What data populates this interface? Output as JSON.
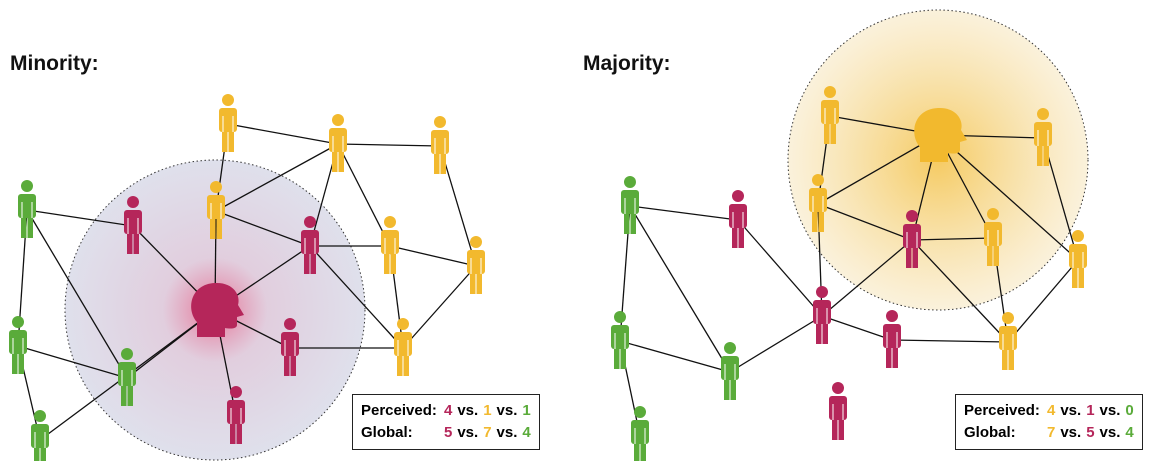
{
  "separator": "vs.",
  "panels": [
    {
      "title": "Minority:",
      "rows": [
        {
          "label": "Perceived:",
          "values": [
            4,
            1,
            1
          ],
          "colors": [
            "#b5265a",
            "#f2b92e",
            "#5aab3a"
          ]
        },
        {
          "label": "Global:",
          "values": [
            5,
            7,
            4
          ],
          "colors": [
            "#b5265a",
            "#f2b92e",
            "#5aab3a"
          ]
        }
      ]
    },
    {
      "title": "Majority:",
      "rows": [
        {
          "label": "Perceived:",
          "values": [
            4,
            1,
            0
          ],
          "colors": [
            "#f2b92e",
            "#b5265a",
            "#5aab3a"
          ]
        },
        {
          "label": "Global:",
          "values": [
            7,
            5,
            4
          ],
          "colors": [
            "#f2b92e",
            "#b5265a",
            "#5aab3a"
          ]
        }
      ]
    }
  ]
}
